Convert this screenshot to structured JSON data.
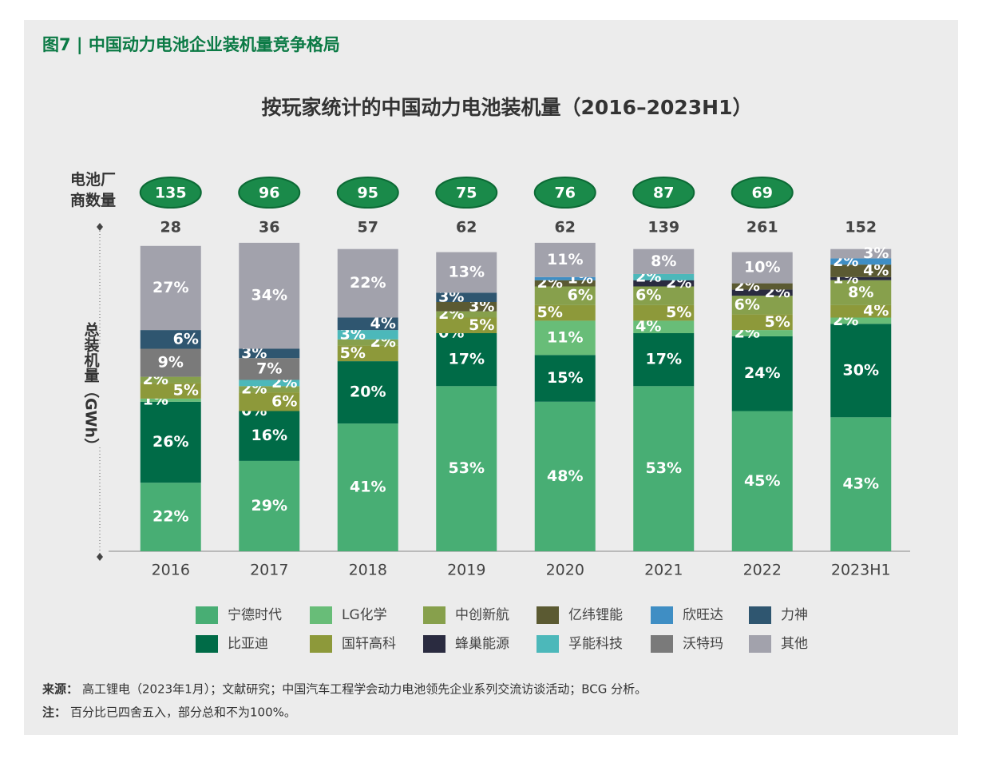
{
  "header": {
    "title": "图7 | 中国动力电池企业装机量竞争格局"
  },
  "chart_data": {
    "type": "stacked_bar_100",
    "title": "按玩家统计的中国动力电池装机量（2016–2023H1）",
    "y_label": "总装机量（GWh）",
    "count_label": "电池厂商数量",
    "categories": [
      "2016",
      "2017",
      "2018",
      "2019",
      "2020",
      "2021",
      "2022",
      "2023H1"
    ],
    "company_counts": [
      135,
      96,
      95,
      75,
      76,
      87,
      69,
      null
    ],
    "totals": [
      28,
      36,
      57,
      62,
      62,
      139,
      261,
      152
    ],
    "ylim": [
      0,
      100
    ],
    "series": [
      {
        "name": "宁德时代",
        "color": "#48ae74",
        "values": [
          22,
          29,
          41,
          53,
          48,
          53,
          45,
          43
        ],
        "value_labels": [
          "22%",
          "29%",
          "41%",
          "53%",
          "48%",
          "53%",
          "45%",
          "43%"
        ]
      },
      {
        "name": "比亚迪",
        "color": "#006b47",
        "values": [
          26,
          16,
          20,
          17,
          15,
          17,
          24,
          30
        ],
        "value_labels": [
          "26%",
          "16%",
          "20%",
          "17%",
          "15%",
          "17%",
          "24%",
          "30%"
        ]
      },
      {
        "name": "LG化学",
        "color": "#68bd78",
        "values": [
          1,
          0,
          null,
          0,
          11,
          4,
          2,
          2
        ],
        "value_labels": [
          "1%",
          "0%",
          null,
          "0%",
          "11%",
          "4%",
          "2%",
          "2%"
        ]
      },
      {
        "name": "国轩高科",
        "color": "#8d993a",
        "values": [
          5,
          6,
          5,
          5,
          5,
          5,
          5,
          4
        ],
        "value_labels": [
          "5%",
          "6%",
          "5%",
          "5%",
          "5%",
          "5%",
          "5%",
          "4%"
        ]
      },
      {
        "name": "中创新航",
        "color": "#87a04c",
        "values": [
          2,
          2,
          2,
          2,
          6,
          6,
          6,
          8
        ],
        "value_labels": [
          "2%",
          "2%",
          "2%",
          "2%",
          "6%",
          "6%",
          "6%",
          "8%"
        ]
      },
      {
        "name": "蜂巢能源",
        "color": "#2a2b40",
        "values": [
          null,
          null,
          null,
          null,
          null,
          2,
          2,
          1
        ],
        "value_labels": [
          null,
          null,
          null,
          null,
          null,
          "2%",
          "2%",
          "1%"
        ]
      },
      {
        "name": "亿纬锂能",
        "color": "#5b5a32",
        "values": [
          null,
          null,
          null,
          3,
          2,
          null,
          2,
          4
        ],
        "value_labels": [
          null,
          null,
          null,
          "3%",
          "2%",
          null,
          "2%",
          "4%"
        ]
      },
      {
        "name": "孚能科技",
        "color": "#4cb8ba",
        "values": [
          null,
          2,
          3,
          null,
          null,
          2,
          null,
          null
        ],
        "value_labels": [
          null,
          "2%",
          "3%",
          null,
          null,
          "2%",
          null,
          null
        ]
      },
      {
        "name": "欣旺达",
        "color": "#3f8ec4",
        "values": [
          null,
          null,
          null,
          null,
          1,
          null,
          null,
          2
        ],
        "value_labels": [
          null,
          null,
          null,
          null,
          "1%",
          null,
          null,
          "2%"
        ]
      },
      {
        "name": "沃特玛",
        "color": "#7a7a7a",
        "values": [
          9,
          7,
          null,
          null,
          null,
          null,
          null,
          null
        ],
        "value_labels": [
          "9%",
          "7%",
          null,
          null,
          null,
          null,
          null,
          null
        ]
      },
      {
        "name": "力神",
        "color": "#2f5670",
        "values": [
          6,
          3,
          4,
          3,
          null,
          null,
          null,
          null
        ],
        "value_labels": [
          "6%",
          "3%",
          "4%",
          "3%",
          null,
          null,
          null,
          null
        ]
      },
      {
        "name": "其他",
        "color": "#a2a2ac",
        "values": [
          27,
          34,
          22,
          13,
          11,
          8,
          10,
          3
        ],
        "value_labels": [
          "27%",
          "34%",
          "22%",
          "13%",
          "11%",
          "8%",
          "10%",
          "3%"
        ]
      }
    ]
  },
  "footer": {
    "source_label": "来源：",
    "source": "高工锂电（2023年1月）；文献研究；中国汽车工程学会动力电池领先企业系列交流访谈活动；BCG 分析。",
    "note_label": "注：",
    "note": "百分比已四舍五入，部分总和不为100%。"
  }
}
